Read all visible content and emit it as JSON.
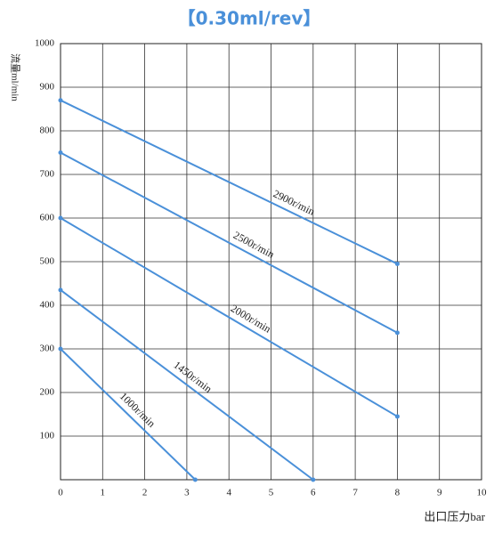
{
  "chart_data": {
    "type": "line",
    "title": "【0.30ml/rev】",
    "y_label": "流量ml/min",
    "x_label": "出口压力bar",
    "xlim": [
      0,
      10
    ],
    "xticks": [
      0,
      1,
      2,
      3,
      4,
      5,
      6,
      7,
      8,
      9,
      10
    ],
    "ylim": [
      0,
      1000
    ],
    "yticks": [
      100,
      200,
      300,
      400,
      500,
      600,
      700,
      800,
      900,
      1000
    ],
    "grid": true,
    "series": [
      {
        "name": "2900r/min",
        "color": "#4a90d9",
        "x": [
          0,
          8
        ],
        "values": [
          870,
          495
        ]
      },
      {
        "name": "2500r/min",
        "color": "#4a90d9",
        "x": [
          0,
          8
        ],
        "values": [
          750,
          337
        ]
      },
      {
        "name": "2000r/min",
        "color": "#4a90d9",
        "x": [
          0,
          8
        ],
        "values": [
          600,
          145
        ]
      },
      {
        "name": "1450r/min",
        "color": "#4a90d9",
        "x": [
          0,
          6
        ],
        "values": [
          435,
          0
        ]
      },
      {
        "name": "1000r/min",
        "color": "#4a90d9",
        "x": [
          0,
          3.2
        ],
        "values": [
          300,
          0
        ]
      }
    ]
  }
}
